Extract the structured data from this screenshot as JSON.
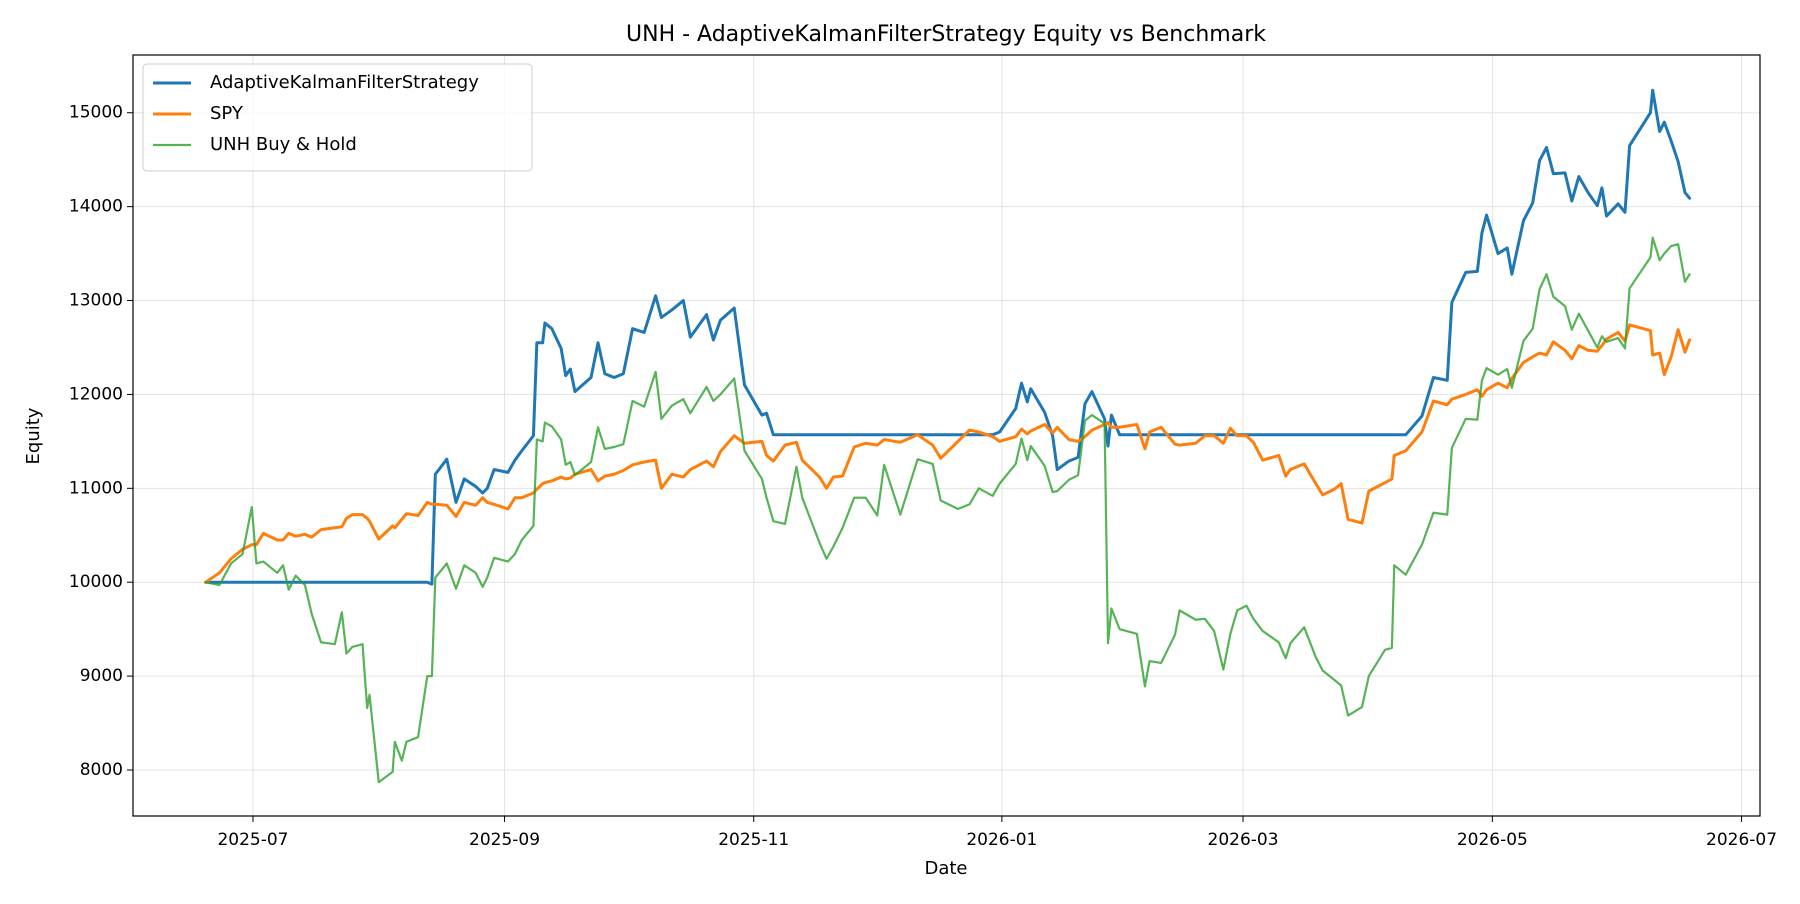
{
  "chart_data": {
    "type": "line",
    "title": "UNH - AdaptiveKalmanFilterStrategy Equity vs Benchmark",
    "xlabel": "Date",
    "ylabel": "Equity",
    "grid": true,
    "legend": "upper left",
    "xlim": [
      2025.4194,
      2026.5124
    ],
    "ylim": [
      7510,
      15615
    ],
    "xticks": [
      {
        "value": 2025.5,
        "label": "2025-07"
      },
      {
        "value": 2025.669,
        "label": "2025-09"
      },
      {
        "value": 2025.8364,
        "label": "2025-11"
      },
      {
        "value": 2026.0031,
        "label": "2026-01"
      },
      {
        "value": 2026.1651,
        "label": "2026-03"
      },
      {
        "value": 2026.3326,
        "label": "2026-05"
      },
      {
        "value": 2026.5,
        "label": "2026-07"
      }
    ],
    "yticks": [
      8000,
      9000,
      10000,
      11000,
      12000,
      13000,
      14000,
      15000
    ],
    "x": [
      2025.4682,
      2025.4775,
      2025.4853,
      2025.493,
      2025.4992,
      2025.5023,
      2025.507,
      2025.5163,
      2025.5202,
      2025.524,
      2025.5287,
      2025.5349,
      2025.5395,
      2025.5457,
      2025.555,
      2025.5597,
      2025.5628,
      2025.5667,
      2025.5736,
      2025.5767,
      2025.5783,
      2025.5845,
      2025.5938,
      2025.5953,
      2025.6,
      2025.6031,
      2025.6109,
      2025.6171,
      2025.6202,
      2025.6225,
      2025.6302,
      2025.6364,
      2025.6419,
      2025.6496,
      2025.6543,
      2025.6574,
      2025.662,
      2025.6713,
      2025.676,
      2025.6806,
      2025.6884,
      2025.6907,
      2025.6946,
      2025.6961,
      2025.7008,
      2025.707,
      2025.7101,
      2025.7132,
      2025.7163,
      2025.7271,
      2025.7318,
      2025.7364,
      2025.7426,
      2025.7488,
      2025.755,
      2025.7628,
      2025.7705,
      2025.7744,
      2025.7814,
      2025.7891,
      2025.7938,
      2025.8047,
      2025.8093,
      2025.814,
      2025.8233,
      2025.8302,
      2025.8419,
      2025.845,
      2025.8496,
      2025.8574,
      2025.8651,
      2025.869,
      2025.8806,
      2025.8853,
      2025.8899,
      2025.8961,
      2025.9039,
      2025.9116,
      2025.9194,
      2025.924,
      2025.9349,
      2025.9465,
      2025.9566,
      2025.962,
      2025.9736,
      2025.9814,
      2025.9876,
      2025.9969,
      2026.0016,
      2026.0124,
      2026.0163,
      2026.0202,
      2026.0225,
      2026.0318,
      2026.0372,
      2026.0403,
      2026.0481,
      2026.0543,
      2026.0589,
      2026.0636,
      2026.0721,
      2026.0744,
      2026.0767,
      2026.0822,
      2026.0938,
      2026.0992,
      2026.1023,
      2026.1101,
      2026.1194,
      2026.1225,
      2026.1333,
      2026.1395,
      2026.1457,
      2026.1519,
      2026.1566,
      2026.1612,
      2026.1674,
      2026.1721,
      2026.1783,
      2026.1891,
      2026.1938,
      2026.1969,
      2026.2062,
      2026.214,
      2026.2186,
      2026.2264,
      2026.231,
      2026.2357,
      2026.245,
      2026.2496,
      2026.2605,
      2026.2651,
      2026.2667,
      2026.2744,
      2026.2853,
      2026.293,
      2026.3023,
      2026.3054,
      2026.3147,
      2026.3225,
      2026.3256,
      2026.3287,
      2026.3364,
      2026.3426,
      2026.3457,
      2026.3535,
      2026.3597,
      2026.3643,
      2026.369,
      2026.3736,
      2026.3814,
      2026.386,
      2026.3907,
      2026.3969,
      2026.4031,
      2026.4062,
      2026.4093,
      2026.4171,
      2026.4217,
      2026.4248,
      2026.4388,
      2026.4403,
      2026.445,
      2026.4481,
      2026.4527,
      2026.4574,
      2026.462,
      2026.4651
    ],
    "series": [
      {
        "name": "AdaptiveKalmanFilterStrategy",
        "color": "#1f77b4",
        "width": 3,
        "values": [
          10000,
          10000,
          10000,
          10000,
          10000,
          10000,
          10000,
          10000,
          10000,
          10000,
          10000,
          10000,
          10000,
          10000,
          10000,
          10000,
          10000,
          10000,
          10000,
          10000,
          10000,
          10000,
          10000,
          10000,
          10000,
          10000,
          10000,
          10000,
          9980,
          11150,
          11310,
          10850,
          11100,
          11020,
          10950,
          11000,
          11200,
          11170,
          11300,
          11400,
          11560,
          12550,
          12550,
          12760,
          12700,
          12490,
          12200,
          12270,
          12030,
          12180,
          12550,
          12220,
          12180,
          12220,
          12700,
          12660,
          13050,
          12820,
          12900,
          13000,
          12610,
          12850,
          12580,
          12790,
          12920,
          12100,
          11780,
          11800,
          11570,
          11570,
          11570,
          11570,
          11570,
          11570,
          11570,
          11570,
          11570,
          11570,
          11570,
          11570,
          11570,
          11570,
          11570,
          11570,
          11570,
          11570,
          11570,
          11570,
          11600,
          11850,
          12120,
          11920,
          12060,
          11810,
          11560,
          11200,
          11290,
          11330,
          11900,
          12030,
          11740,
          11450,
          11780,
          11570,
          11570,
          11570,
          11570,
          11570,
          11570,
          11570,
          11570,
          11570,
          11570,
          11570,
          11570,
          11570,
          11570,
          11570,
          11570,
          11570,
          11570,
          11570,
          11570,
          11570,
          11570,
          11570,
          11570,
          11570,
          11570,
          11570,
          11570,
          11570,
          11570,
          11570,
          11770,
          12180,
          12150,
          12980,
          13300,
          13310,
          13720,
          13910,
          13500,
          13560,
          13280,
          13850,
          14040,
          14490,
          14630,
          14350,
          14360,
          14060,
          14320,
          14150,
          14010,
          14200,
          13900,
          14030,
          13940,
          14650,
          15000,
          15240,
          14800,
          14900,
          14700,
          14480,
          14150,
          14090
        ]
      },
      {
        "name": "SPY",
        "color": "#ff7f0e",
        "width": 3,
        "values": [
          10000,
          10100,
          10250,
          10350,
          10400,
          10400,
          10520,
          10450,
          10450,
          10520,
          10490,
          10510,
          10480,
          10560,
          10580,
          10590,
          10680,
          10720,
          10720,
          10680,
          10650,
          10460,
          10600,
          10580,
          10670,
          10730,
          10710,
          10850,
          10830,
          10830,
          10820,
          10700,
          10850,
          10820,
          10900,
          10850,
          10830,
          10780,
          10900,
          10900,
          10950,
          10990,
          11050,
          11060,
          11080,
          11120,
          11100,
          11110,
          11150,
          11200,
          11080,
          11130,
          11150,
          11190,
          11250,
          11280,
          11300,
          11000,
          11150,
          11120,
          11200,
          11290,
          11230,
          11390,
          11560,
          11480,
          11500,
          11350,
          11290,
          11460,
          11490,
          11300,
          11120,
          11000,
          11120,
          11130,
          11440,
          11480,
          11460,
          11520,
          11490,
          11570,
          11460,
          11320,
          11500,
          11620,
          11600,
          11550,
          11500,
          11550,
          11630,
          11580,
          11610,
          11680,
          11590,
          11650,
          11520,
          11500,
          11550,
          11620,
          11680,
          11700,
          11650,
          11650,
          11680,
          11420,
          11600,
          11650,
          11470,
          11460,
          11480,
          11560,
          11560,
          11480,
          11640,
          11560,
          11560,
          11490,
          11300,
          11350,
          11130,
          11200,
          11260,
          11050,
          10930,
          10990,
          11050,
          10670,
          10630,
          10970,
          11060,
          11100,
          11350,
          11400,
          11600,
          11930,
          11890,
          11950,
          12000,
          12050,
          11980,
          12050,
          12120,
          12070,
          12170,
          12340,
          12400,
          12440,
          12420,
          12560,
          12470,
          12380,
          12520,
          12470,
          12460,
          12520,
          12590,
          12660,
          12570,
          12740,
          12680,
          12420,
          12440,
          12210,
          12400,
          12690,
          12450,
          12580
        ]
      },
      {
        "name": "UNH Buy & Hold",
        "color": "#2ca02c",
        "width": 2.2,
        "opacity": 0.8,
        "values": [
          10000,
          9970,
          10200,
          10300,
          10800,
          10200,
          10220,
          10100,
          10180,
          9920,
          10070,
          9970,
          9660,
          9360,
          9340,
          9680,
          9240,
          9310,
          9340,
          8660,
          8800,
          7870,
          7980,
          8300,
          8100,
          8300,
          8350,
          9000,
          9000,
          10050,
          10200,
          9930,
          10180,
          10100,
          9950,
          10050,
          10260,
          10220,
          10300,
          10450,
          10600,
          11520,
          11500,
          11700,
          11660,
          11520,
          11250,
          11280,
          11140,
          11280,
          11650,
          11420,
          11440,
          11470,
          11930,
          11870,
          12240,
          11740,
          11880,
          11950,
          11800,
          12080,
          11930,
          12000,
          12170,
          11400,
          11100,
          10900,
          10650,
          10620,
          11230,
          10900,
          10420,
          10250,
          10380,
          10580,
          10900,
          10900,
          10710,
          11250,
          10720,
          11310,
          11260,
          10870,
          10780,
          10830,
          11000,
          10920,
          11050,
          11260,
          11530,
          11300,
          11450,
          11240,
          10960,
          10970,
          11090,
          11140,
          11720,
          11780,
          11690,
          9350,
          9720,
          9500,
          9450,
          8890,
          9160,
          9140,
          9440,
          9700,
          9600,
          9610,
          9480,
          9070,
          9450,
          9700,
          9750,
          9610,
          9480,
          9360,
          9190,
          9350,
          9520,
          9200,
          9060,
          8960,
          8900,
          8580,
          8670,
          9000,
          9280,
          9300,
          10180,
          10080,
          10400,
          10740,
          10720,
          11430,
          11740,
          11730,
          12150,
          12280,
          12210,
          12270,
          12070,
          12570,
          12700,
          13120,
          13280,
          13040,
          12940,
          12690,
          12860,
          12680,
          12500,
          12620,
          12560,
          12600,
          12490,
          13130,
          13460,
          13670,
          13430,
          13500,
          13580,
          13600,
          13200,
          13280
        ]
      }
    ]
  }
}
